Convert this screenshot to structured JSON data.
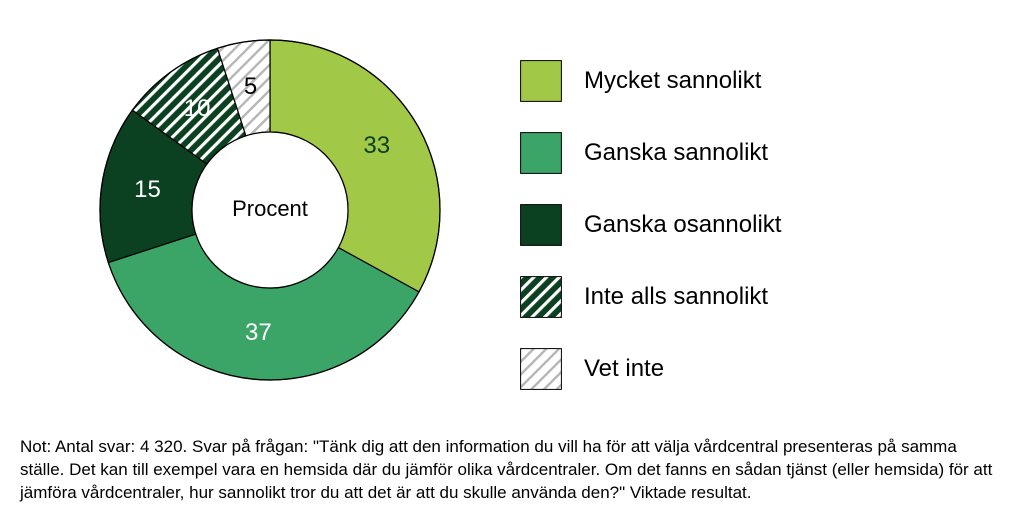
{
  "chart": {
    "type": "donut",
    "center_label": "Procent",
    "center_label_fontsize": 22,
    "center_label_color": "#000000",
    "outer_radius": 170,
    "inner_radius": 78,
    "stroke_color": "#000000",
    "stroke_width": 1.2,
    "slice_label_fontsize": 24,
    "background_color": "#ffffff",
    "start_angle_deg": 0,
    "slices": [
      {
        "label": "Mycket sannolikt",
        "value": 33,
        "fill": "#a2c847",
        "pattern": null,
        "label_color": "#0b4020"
      },
      {
        "label": "Ganska sannolikt",
        "value": 37,
        "fill": "#3aa566",
        "pattern": null,
        "label_color": "#ffffff"
      },
      {
        "label": "Ganska osannolikt",
        "value": 15,
        "fill": "#0b4020",
        "pattern": null,
        "label_color": "#ffffff"
      },
      {
        "label": "Inte alls sannolikt",
        "value": 10,
        "fill": "#0b4020",
        "pattern": "diag",
        "label_color": "#ffffff"
      },
      {
        "label": "Vet inte",
        "value": 5,
        "fill": "#ffffff",
        "pattern": "diag2",
        "label_color": "#000000"
      }
    ]
  },
  "legend": {
    "swatch_size": 42,
    "label_fontsize": 24,
    "label_color": "#000000"
  },
  "footnote": {
    "text": "Not: Antal svar: 4 320. Svar på frågan: \"Tänk dig att den information du vill ha för att välja vårdcentral presenteras på samma ställe. Det kan till exempel vara en hemsida där du jämför olika vårdcentraler. Om det fanns en sådan tjänst (eller hemsida) för att jämföra vårdcentraler, hur sannolikt tror du att det är att du skulle använda den?\" Viktade resultat.",
    "fontsize": 17,
    "color": "#000000"
  },
  "patterns": {
    "diag": {
      "stripe_color": "#ffffff",
      "bg": "#0b4020",
      "spacing": 9,
      "width": 3.2,
      "angle": 45
    },
    "diag2": {
      "stripe_color": "#b6b6b6",
      "bg": "#ffffff",
      "spacing": 9,
      "width": 2.4,
      "angle": 45
    }
  }
}
